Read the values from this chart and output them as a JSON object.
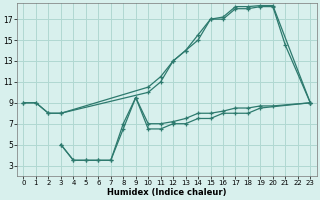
{
  "bg_color": "#d8f0ed",
  "grid_color": "#b0d8d2",
  "line_color": "#2d7a6e",
  "marker_color": "#2d7a6e",
  "s1x": [
    0,
    1,
    2,
    3,
    10,
    11,
    12,
    13,
    14,
    15,
    16,
    17,
    18,
    19,
    20,
    23
  ],
  "s1y": [
    9,
    9,
    8,
    8,
    10,
    11,
    13,
    14,
    15.5,
    17,
    17.2,
    18.2,
    18.2,
    18.3,
    18.3,
    9
  ],
  "s2x": [
    0,
    1,
    2,
    3,
    10,
    11,
    12,
    13,
    14,
    15,
    16,
    17,
    18,
    19,
    20,
    21,
    23
  ],
  "s2y": [
    9,
    9,
    8,
    8,
    10.5,
    11.5,
    13,
    14,
    15,
    17,
    17.0,
    18,
    18,
    18.2,
    18.2,
    14.5,
    9
  ],
  "s3x": [
    3,
    4,
    5,
    6,
    7,
    8,
    9,
    10,
    11,
    12,
    13,
    14,
    15,
    16,
    17,
    18,
    19,
    20,
    23
  ],
  "s3y": [
    5,
    3.5,
    3.5,
    3.5,
    3.5,
    7,
    9.5,
    7,
    7,
    7.2,
    7.5,
    8,
    8,
    8.2,
    8.5,
    8.5,
    8.7,
    8.7,
    9
  ],
  "s4x": [
    3,
    4,
    5,
    6,
    7,
    8,
    9,
    10,
    11,
    12,
    13,
    14,
    15,
    16,
    17,
    18,
    19,
    23
  ],
  "s4y": [
    5,
    3.5,
    3.5,
    3.5,
    3.5,
    6.5,
    9.5,
    6.5,
    6.5,
    7,
    7,
    7.5,
    7.5,
    8,
    8,
    8,
    8.5,
    9
  ],
  "xlabel": "Humidex (Indice chaleur)",
  "xlim": [
    -0.5,
    23.5
  ],
  "ylim": [
    2.0,
    18.5
  ],
  "yticks": [
    3,
    5,
    7,
    9,
    11,
    13,
    15,
    17
  ],
  "xticks": [
    0,
    1,
    2,
    3,
    4,
    5,
    6,
    7,
    8,
    9,
    10,
    11,
    12,
    13,
    14,
    15,
    16,
    17,
    18,
    19,
    20,
    21,
    22,
    23
  ],
  "xlabel_fontsize": 6.0,
  "tick_fontsize": 5.0,
  "linewidth": 0.9,
  "markersize": 3.5
}
